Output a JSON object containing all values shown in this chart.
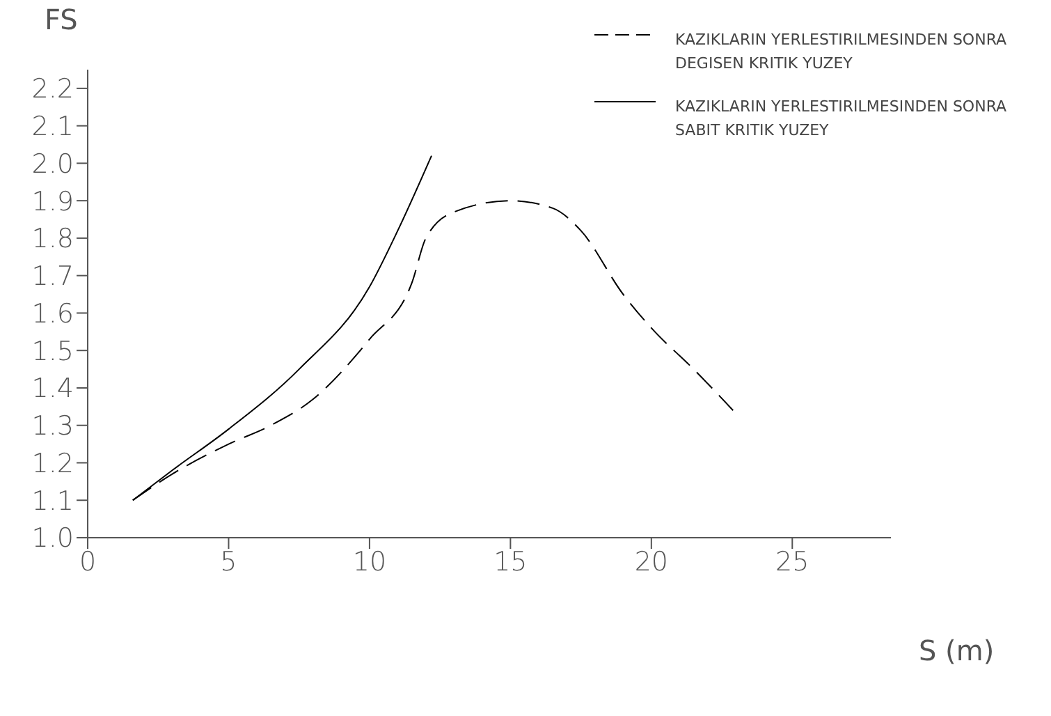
{
  "chart_data": {
    "type": "line",
    "xlabel": "S (m)",
    "ylabel": "FS",
    "xlim": [
      0,
      28.5
    ],
    "xticks": [
      0,
      5,
      10,
      15,
      20,
      25
    ],
    "ylim": [
      1.0,
      2.25
    ],
    "yticks": [
      {
        "value": 1.0,
        "label": "1.0"
      },
      1.1,
      1.2,
      1.3,
      1.4,
      1.5,
      1.6,
      1.7,
      1.8,
      1.9,
      {
        "value": 2.0,
        "label": "2.0"
      },
      2.1,
      2.2
    ],
    "grid": false,
    "legend": "top right",
    "marker": "none",
    "series": [
      {
        "name": "KAZIKLARIN YERLESTIRILMESINDEN SONRA DEGISEN KRITIK YUZEY",
        "color": "#000000",
        "line_style": "dashed",
        "x": [
          1.6,
          3,
          5,
          6.5,
          8,
          10,
          11.5,
          12,
          13,
          15,
          16.5,
          17.5,
          19,
          20,
          21.5,
          22.9
        ],
        "values": [
          1.1,
          1.17,
          1.25,
          1.3,
          1.37,
          1.53,
          1.68,
          1.8,
          1.87,
          1.9,
          1.88,
          1.82,
          1.65,
          1.56,
          1.45,
          1.34
        ]
      },
      {
        "name": "KAZIKLARIN YERLESTIRILMESINDEN SONRA SABIT KRITIK YUZEY",
        "color": "#000000",
        "line_style": "solid",
        "x": [
          1.6,
          3,
          5,
          7.5,
          10,
          11,
          12.2
        ],
        "values": [
          1.1,
          1.18,
          1.29,
          1.45,
          1.67,
          1.82,
          2.02
        ]
      }
    ]
  }
}
